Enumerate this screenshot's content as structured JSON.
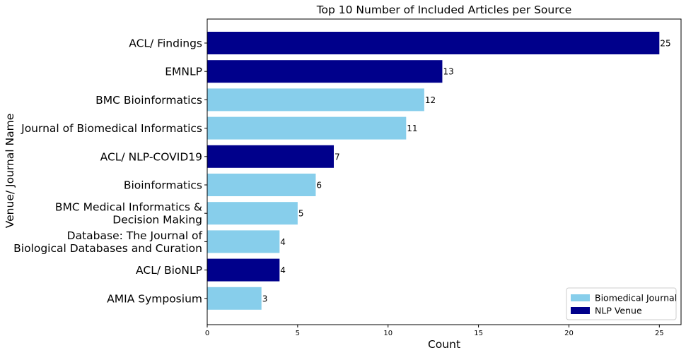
{
  "chart_data": {
    "type": "bar",
    "orientation": "horizontal",
    "title": "Top 10 Number of Included Articles per Source",
    "xlabel": "Count",
    "ylabel": "Venue/ Journal Name",
    "xlim": [
      0,
      26.2
    ],
    "xticks": [
      "0",
      "5",
      "10",
      "15",
      "20",
      "25"
    ],
    "grid": false,
    "legend_position": "bottom-right",
    "colors": {
      "Biomedical Journal": "#87ceeb",
      "NLP Venue": "#00008b"
    },
    "legend": [
      "Biomedical Journal",
      "NLP Venue"
    ],
    "categories": [
      [
        "ACL/ Findings"
      ],
      [
        "EMNLP"
      ],
      [
        "BMC Bioinformatics"
      ],
      [
        "Journal of Biomedical Informatics"
      ],
      [
        "ACL/ NLP-COVID19"
      ],
      [
        "Bioinformatics"
      ],
      [
        "BMC Medical Informatics &",
        "Decision Making"
      ],
      [
        "Database: The Journal of",
        "Biological Databases and Curation"
      ],
      [
        "ACL/ BioNLP"
      ],
      [
        "AMIA Symposium"
      ]
    ],
    "values": [
      25,
      13,
      12,
      11,
      7,
      6,
      5,
      4,
      4,
      3
    ],
    "groups": [
      "NLP Venue",
      "NLP Venue",
      "Biomedical Journal",
      "Biomedical Journal",
      "NLP Venue",
      "Biomedical Journal",
      "Biomedical Journal",
      "Biomedical Journal",
      "NLP Venue",
      "Biomedical Journal"
    ]
  }
}
